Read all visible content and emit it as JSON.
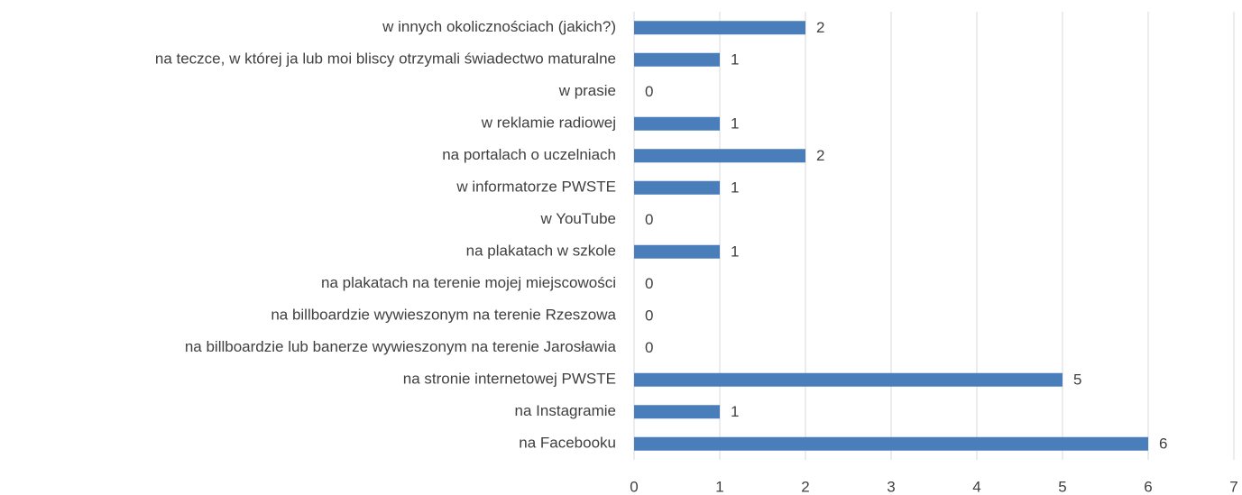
{
  "chart_data": {
    "type": "hbar",
    "categories": [
      "w innych okolicznościach (jakich?)",
      "na teczce, w której ja lub moi bliscy otrzymali świadectwo maturalne",
      "w prasie",
      "w reklamie radiowej",
      "na portalach o uczelniach",
      "w informatorze PWSTE",
      "w YouTube",
      "na plakatach w szkole",
      "na plakatach na terenie mojej miejscowości",
      "na billboardzie wywieszonym na terenie Rzeszowa",
      "na billboardzie lub banerze wywieszonym na terenie Jarosławia",
      "na stronie internetowej PWSTE",
      "na Instagramie",
      "na Facebooku"
    ],
    "values": [
      2,
      1,
      0,
      1,
      2,
      1,
      0,
      1,
      0,
      0,
      0,
      5,
      1,
      6
    ],
    "color": "#4a7ebb",
    "xlim": [
      0,
      7
    ],
    "xticks": [
      0,
      1,
      2,
      3,
      4,
      5,
      6,
      7
    ],
    "grid": true
  }
}
